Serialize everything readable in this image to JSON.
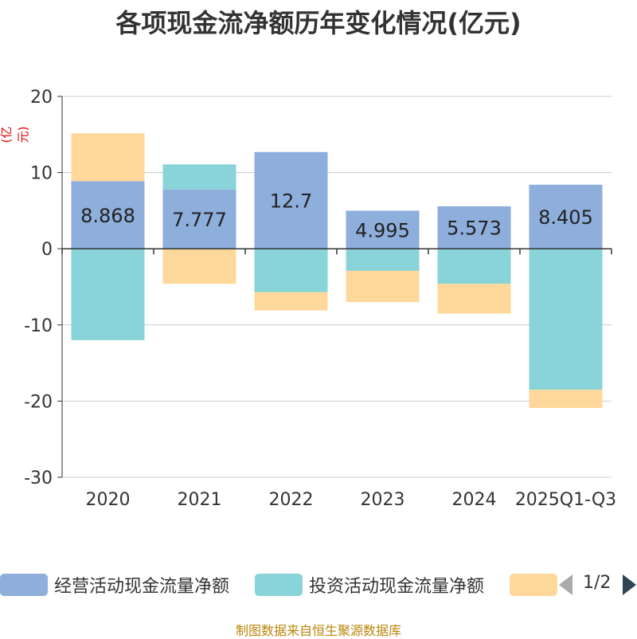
{
  "chart_data": {
    "type": "bar",
    "stacked": true,
    "title": "各项现金流净额历年变化情况(亿元)",
    "ylabel": "(亿元)",
    "ylim": [
      -30,
      20
    ],
    "yticks": [
      -30,
      -20,
      -10,
      0,
      10,
      20
    ],
    "categories": [
      "2020",
      "2021",
      "2022",
      "2023",
      "2024",
      "2025Q1-Q3"
    ],
    "series": [
      {
        "name": "经营活动现金流量净额",
        "color": "#8eaedb",
        "values": [
          8.868,
          7.777,
          12.7,
          4.995,
          5.573,
          8.405
        ]
      },
      {
        "name": "投资活动现金流量净额",
        "color": "#88d4d8",
        "values": [
          -12.0,
          3.3,
          -5.7,
          -2.9,
          -4.6,
          -18.5
        ]
      },
      {
        "name": "",
        "color": "#fdd89a",
        "values": [
          6.3,
          -4.6,
          -2.4,
          -4.1,
          -3.9,
          -2.4
        ]
      }
    ],
    "data_labels": [
      "8.868",
      "7.777",
      "12.7",
      "4.995",
      "5.573",
      "8.405"
    ]
  },
  "legend": {
    "page": "1/2"
  },
  "source": "制图数据来自恒生聚源数据库"
}
